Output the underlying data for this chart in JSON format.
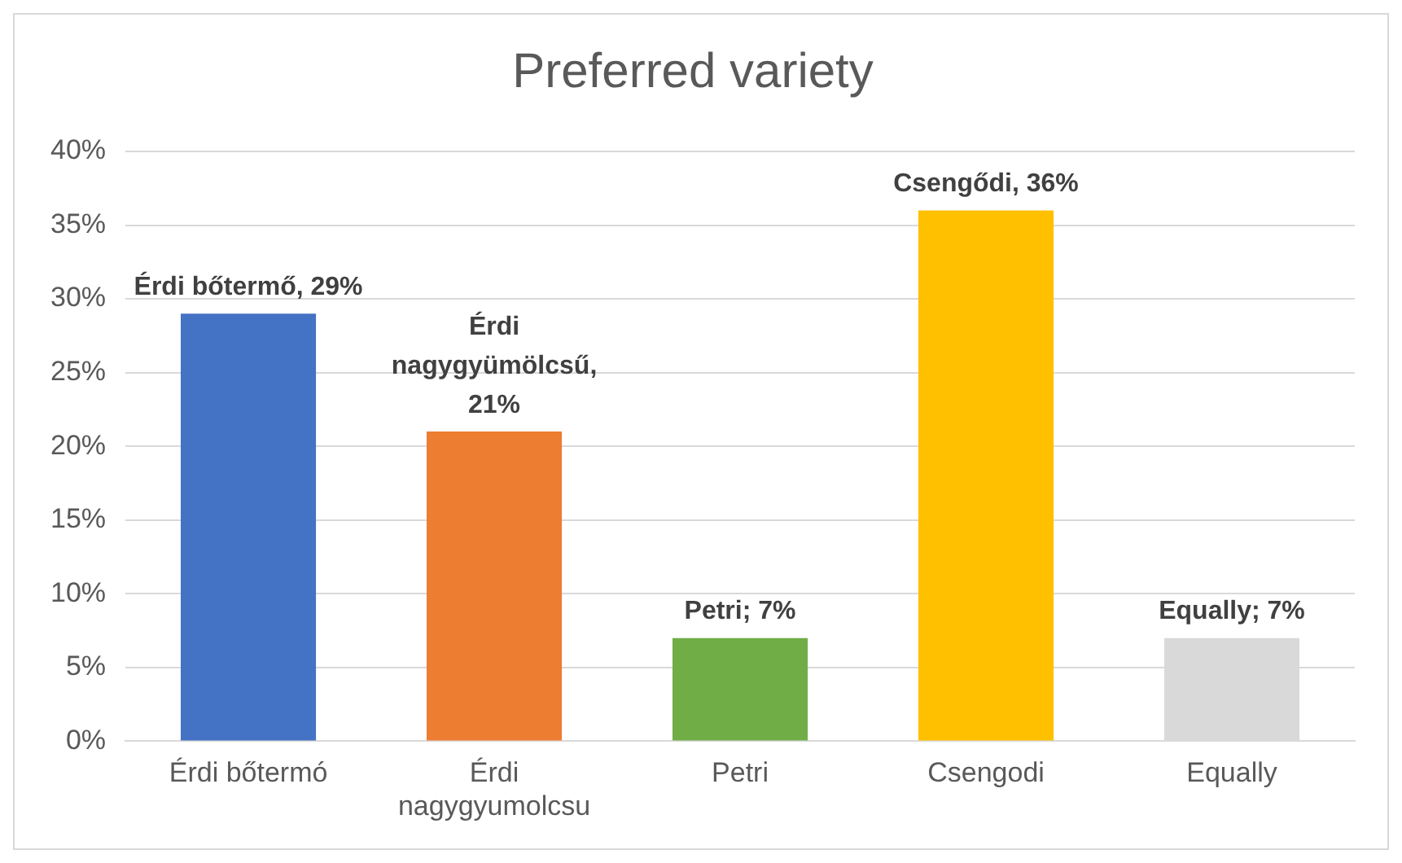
{
  "chart_data": {
    "type": "bar",
    "title": "Preferred variety",
    "categories": [
      "Érdi bőtermó",
      "Érdi nagygyumolcsu",
      "Petri",
      "Csengodi",
      "Equally"
    ],
    "values": [
      29,
      21,
      7,
      36,
      7
    ],
    "colors": [
      "#4472c4",
      "#ed7d31",
      "#70ad47",
      "#ffc000",
      "#d9d9d9"
    ],
    "value_labels": [
      "Érdi bőtermő, 29%",
      "Érdi nagygyümölcsű, 21%",
      "Petri; 7%",
      "Csengődi, 36%",
      "Equally; 7%"
    ],
    "ylim": [
      0,
      40
    ],
    "yticks": [
      {
        "value": 0,
        "label": "0%"
      },
      {
        "value": 5,
        "label": "5%"
      },
      {
        "value": 10,
        "label": "10%"
      },
      {
        "value": 15,
        "label": "15%"
      },
      {
        "value": 20,
        "label": "20%"
      },
      {
        "value": 25,
        "label": "25%"
      },
      {
        "value": 30,
        "label": "30%"
      },
      {
        "value": 35,
        "label": "35%"
      },
      {
        "value": 40,
        "label": "40%"
      }
    ],
    "grid": "y",
    "legend": false
  }
}
